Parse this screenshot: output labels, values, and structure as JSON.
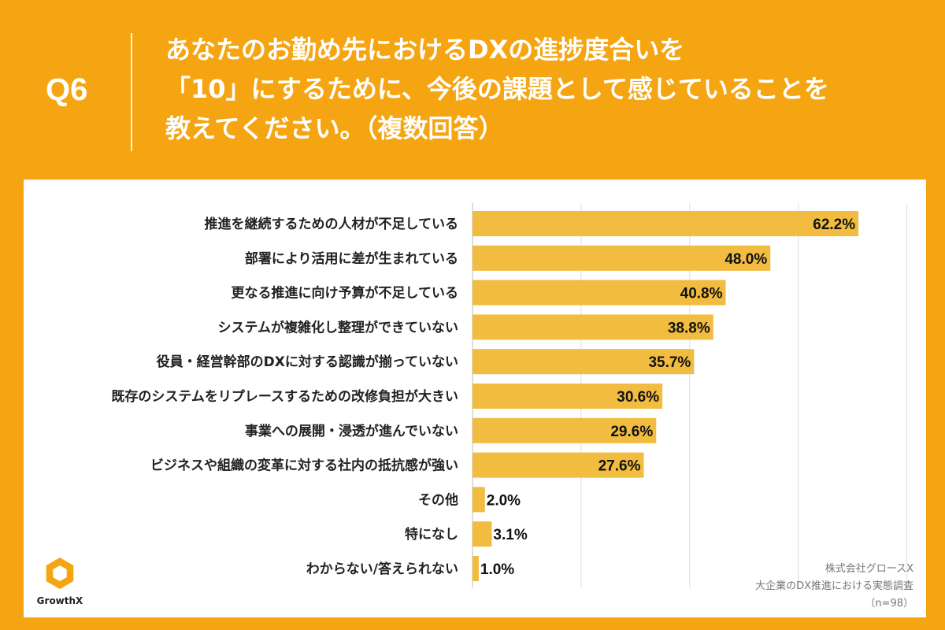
{
  "header": {
    "question_number": "Q6",
    "question_lines": [
      "あなたのお勤め先におけるDXの進捗度合いを",
      "「10」にするために、今後の課題として感じていることを",
      "教えてください。（複数回答）"
    ]
  },
  "source": {
    "company": "株式会社グロースX",
    "survey": "大企業のDX推進における実態調査",
    "sample": "（n=98）"
  },
  "logo": {
    "text": "GrowthX",
    "icon": "hexagon-ring-icon"
  },
  "colors": {
    "background": "#F5A512",
    "bar": "#F1BC3F",
    "grid": "#DDDDDD",
    "panel": "#FFFFFF"
  },
  "chart_data": {
    "type": "bar",
    "orientation": "horizontal",
    "categories": [
      "推進を継続するための人材が不足している",
      "部署により活用に差が生まれている",
      "更なる推進に向け予算が不足している",
      "システムが複雑化し整理ができていない",
      "役員・経営幹部のDXに対する認識が揃っていない",
      "既存のシステムをリプレースするための改修負担が大きい",
      "事業への展開・浸透が進んでいない",
      "ビジネスや組織の変革に対する社内の抵抗感が強い",
      "その他",
      "特になし",
      "わからない/答えられない"
    ],
    "values": [
      62.2,
      48.0,
      40.8,
      38.8,
      35.7,
      30.6,
      29.6,
      27.6,
      2.0,
      3.1,
      1.0
    ],
    "data_labels": [
      "62.2%",
      "48.0%",
      "40.8%",
      "38.8%",
      "35.7%",
      "30.6%",
      "29.6%",
      "27.6%",
      "2.0%",
      "3.1%",
      "1.0%"
    ],
    "xlim": [
      0,
      70
    ],
    "grid": true
  }
}
